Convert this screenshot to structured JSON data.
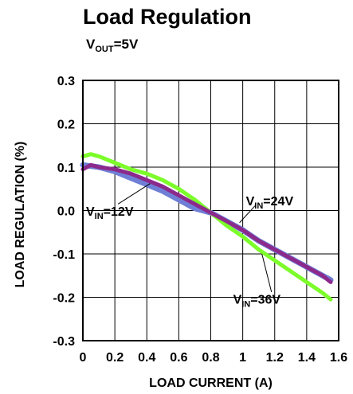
{
  "colors": {
    "vin12": "#6f7fd6",
    "vin24": "#8c2a8c",
    "vin36": "#7cfc2a",
    "grid": "#000000",
    "frame": "#000000"
  },
  "chart_data": {
    "type": "line",
    "title": "Load Regulation",
    "subtitle": {
      "main": "V",
      "sub": "OUT",
      "rest": "=5V"
    },
    "xlabel": "LOAD CURRENT (A)",
    "ylabel": "LOAD REGULATION (%)",
    "xlim": [
      0,
      1.6
    ],
    "ylim": [
      -0.3,
      0.3
    ],
    "xticks": [
      0,
      0.2,
      0.4,
      0.6,
      0.8,
      1,
      1.2,
      1.4,
      1.6
    ],
    "xtick_labels": [
      "0",
      "0.2",
      "0.4",
      "0.6",
      "0.8",
      "1",
      "1.2",
      "1.4",
      "1.6"
    ],
    "yticks": [
      0.3,
      0.2,
      0.1,
      0.0,
      -0.1,
      -0.2,
      -0.3
    ],
    "ytick_labels": [
      "0.3",
      "0.2",
      "0.1",
      "0.0",
      "-0.1",
      "-0.2",
      "-0.3"
    ],
    "grid": true,
    "legend": "none",
    "series": [
      {
        "key": "vin12",
        "label": {
          "main": "V",
          "sub": "IN",
          "rest": "=12V"
        },
        "x": [
          0.0,
          0.1,
          0.2,
          0.3,
          0.4,
          0.5,
          0.6,
          0.7,
          0.8,
          0.9,
          1.0,
          1.1,
          1.2,
          1.3,
          1.4,
          1.5,
          1.55
        ],
        "y": [
          0.105,
          0.1,
          0.09,
          0.075,
          0.06,
          0.045,
          0.025,
          0.005,
          -0.005,
          -0.025,
          -0.045,
          -0.07,
          -0.09,
          -0.11,
          -0.13,
          -0.15,
          -0.16
        ]
      },
      {
        "key": "vin24",
        "label": {
          "main": "V",
          "sub": "IN",
          "rest": "=24V"
        },
        "x": [
          0.0,
          0.05,
          0.1,
          0.2,
          0.3,
          0.4,
          0.5,
          0.6,
          0.7,
          0.8,
          0.9,
          1.0,
          1.1,
          1.2,
          1.3,
          1.4,
          1.5,
          1.55
        ],
        "y": [
          0.095,
          0.105,
          0.1,
          0.095,
          0.085,
          0.07,
          0.055,
          0.035,
          0.015,
          -0.005,
          -0.025,
          -0.045,
          -0.07,
          -0.09,
          -0.11,
          -0.13,
          -0.15,
          -0.165
        ]
      },
      {
        "key": "vin36",
        "label": {
          "main": "V",
          "sub": "IN",
          "rest": "=36V"
        },
        "x": [
          0.0,
          0.05,
          0.1,
          0.2,
          0.3,
          0.4,
          0.5,
          0.6,
          0.7,
          0.8,
          0.9,
          1.0,
          1.1,
          1.2,
          1.3,
          1.4,
          1.5,
          1.55
        ],
        "y": [
          0.125,
          0.13,
          0.125,
          0.11,
          0.095,
          0.085,
          0.07,
          0.05,
          0.025,
          -0.005,
          -0.035,
          -0.06,
          -0.09,
          -0.115,
          -0.14,
          -0.165,
          -0.19,
          -0.205
        ]
      }
    ]
  }
}
